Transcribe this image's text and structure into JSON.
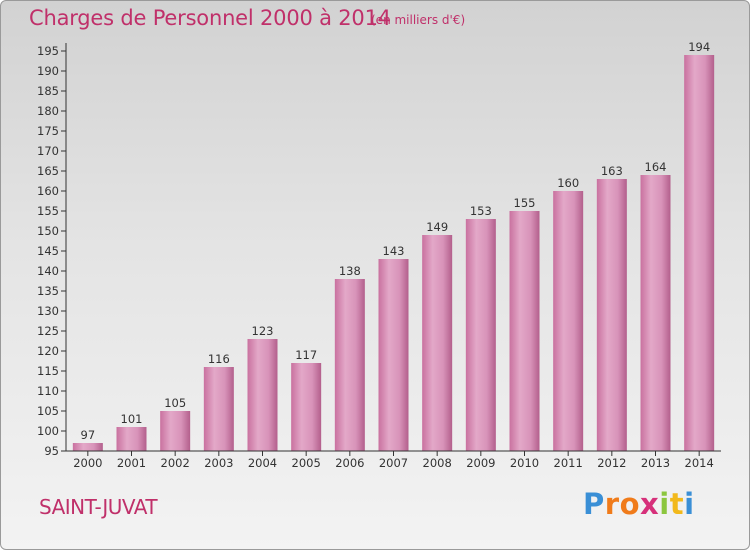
{
  "header": {
    "title": "Charges de Personnel 2000 à 2014",
    "subtitle": "(en milliers d'€)"
  },
  "footer": {
    "commune": "SAINT-JUVAT",
    "logo_letters": [
      "P",
      "r",
      "o",
      "x",
      "i",
      "t",
      "i"
    ],
    "logo_colors": [
      "#3a8fd6",
      "#f07b1a",
      "#f07b1a",
      "#d6307a",
      "#8cc63f",
      "#f2b91c",
      "#3a8fd6"
    ]
  },
  "chart_data": {
    "type": "bar",
    "categories": [
      "2000",
      "2001",
      "2002",
      "2003",
      "2004",
      "2005",
      "2006",
      "2007",
      "2008",
      "2009",
      "2010",
      "2011",
      "2012",
      "2013",
      "2014"
    ],
    "values": [
      97,
      101,
      105,
      116,
      123,
      117,
      138,
      143,
      149,
      153,
      155,
      160,
      163,
      164,
      194
    ],
    "ylim": [
      95,
      195
    ],
    "yticks": [
      95,
      100,
      105,
      110,
      115,
      120,
      125,
      130,
      135,
      140,
      145,
      150,
      155,
      160,
      165,
      170,
      175,
      180,
      185,
      190,
      195
    ],
    "grid": false,
    "bar_color": "#d68fb6"
  }
}
